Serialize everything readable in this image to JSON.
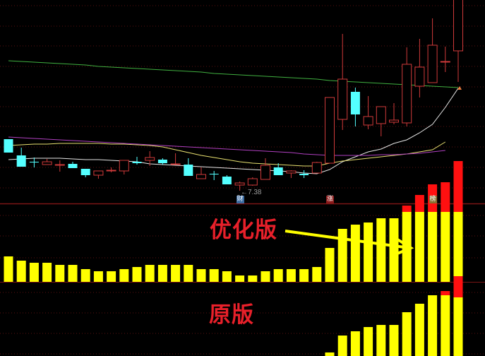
{
  "chart_data": [
    {
      "type": "candlestick",
      "panel": "main",
      "price_range": [
        7.2,
        10.08
      ],
      "grid": true,
      "colors": {
        "up": "#d03a3a",
        "down": "#54ffff",
        "background": "#000000",
        "grid": "#5a1010"
      },
      "candles": [
        {
          "o": 8.11,
          "h": 8.11,
          "l": 7.92,
          "c": 7.92
        },
        {
          "o": 7.88,
          "h": 7.99,
          "l": 7.72,
          "c": 7.72
        },
        {
          "o": 7.79,
          "h": 7.85,
          "l": 7.71,
          "c": 7.78
        },
        {
          "o": 7.75,
          "h": 7.83,
          "l": 7.75,
          "c": 7.79
        },
        {
          "o": 7.74,
          "h": 7.81,
          "l": 7.65,
          "c": 7.75
        },
        {
          "o": 7.76,
          "h": 7.79,
          "l": 7.7,
          "c": 7.7
        },
        {
          "o": 7.69,
          "h": 7.69,
          "l": 7.57,
          "c": 7.6
        },
        {
          "o": 7.6,
          "h": 7.66,
          "l": 7.55,
          "c": 7.66
        },
        {
          "o": 7.66,
          "h": 7.71,
          "l": 7.64,
          "c": 7.67
        },
        {
          "o": 7.66,
          "h": 7.81,
          "l": 7.61,
          "c": 7.81
        },
        {
          "o": 7.79,
          "h": 7.86,
          "l": 7.75,
          "c": 7.77
        },
        {
          "o": 7.81,
          "h": 7.94,
          "l": 7.73,
          "c": 7.85
        },
        {
          "o": 7.82,
          "h": 7.84,
          "l": 7.75,
          "c": 7.77
        },
        {
          "o": 7.75,
          "h": 7.91,
          "l": 7.75,
          "c": 7.76
        },
        {
          "o": 7.75,
          "h": 7.84,
          "l": 7.59,
          "c": 7.59
        },
        {
          "o": 7.55,
          "h": 7.71,
          "l": 7.55,
          "c": 7.61
        },
        {
          "o": 7.62,
          "h": 7.66,
          "l": 7.53,
          "c": 7.61
        },
        {
          "o": 7.58,
          "h": 7.6,
          "l": 7.47,
          "c": 7.47
        },
        {
          "o": 7.46,
          "h": 7.51,
          "l": 7.38,
          "c": 7.49
        },
        {
          "o": 7.46,
          "h": 7.57,
          "l": 7.45,
          "c": 7.55
        },
        {
          "o": 7.54,
          "h": 7.84,
          "l": 7.54,
          "c": 7.74
        },
        {
          "o": 7.71,
          "h": 7.77,
          "l": 7.6,
          "c": 7.6
        },
        {
          "o": 7.63,
          "h": 7.67,
          "l": 7.56,
          "c": 7.66
        },
        {
          "o": 7.62,
          "h": 7.67,
          "l": 7.56,
          "c": 7.6
        },
        {
          "o": 7.63,
          "h": 7.79,
          "l": 7.63,
          "c": 7.78
        },
        {
          "o": 7.77,
          "h": 8.7,
          "l": 7.77,
          "c": 8.7
        },
        {
          "o": 8.39,
          "h": 9.6,
          "l": 8.24,
          "c": 8.96
        },
        {
          "o": 8.78,
          "h": 8.84,
          "l": 8.29,
          "c": 8.46
        },
        {
          "o": 8.31,
          "h": 8.72,
          "l": 8.25,
          "c": 8.43
        },
        {
          "o": 8.33,
          "h": 8.57,
          "l": 8.15,
          "c": 8.57
        },
        {
          "o": 8.35,
          "h": 8.62,
          "l": 8.32,
          "c": 8.38
        },
        {
          "o": 8.34,
          "h": 9.41,
          "l": 8.29,
          "c": 9.17
        },
        {
          "o": 8.86,
          "h": 9.53,
          "l": 8.7,
          "c": 9.13
        },
        {
          "o": 8.91,
          "h": 9.82,
          "l": 8.91,
          "c": 9.44
        },
        {
          "o": 9.2,
          "h": 9.42,
          "l": 9.06,
          "c": 9.21
        },
        {
          "o": 9.36,
          "h": 10.4,
          "l": 8.92,
          "c": 10.3
        }
      ],
      "moving_averages": [
        {
          "color": "#e6e6e6",
          "values": [
            7.82,
            7.83,
            7.84,
            7.84,
            7.84,
            7.83,
            7.82,
            7.82,
            7.81,
            7.8,
            7.79,
            7.76,
            7.75,
            7.74,
            7.73,
            7.72,
            7.71,
            7.7,
            7.69,
            7.68,
            7.67,
            7.66,
            7.65,
            7.63,
            7.62,
            7.68,
            7.79,
            7.86,
            7.93,
            7.97,
            8.05,
            8.1,
            8.2,
            8.32,
            8.56,
            8.83
          ]
        },
        {
          "color": "#e8e070",
          "values": [
            8.02,
            8.03,
            8.04,
            8.04,
            8.05,
            8.05,
            8.05,
            8.05,
            8.04,
            8.04,
            8.03,
            8.02,
            8.0,
            7.96,
            7.92,
            7.88,
            7.85,
            7.82,
            7.79,
            7.77,
            7.76,
            7.75,
            7.74,
            7.73,
            7.73,
            7.77,
            7.8,
            7.82,
            7.84,
            7.86,
            7.88,
            7.9,
            7.93,
            7.96,
            8.07
          ]
        },
        {
          "color": "#b040c0",
          "values": [
            8.14,
            8.13,
            8.12,
            8.11,
            8.1,
            8.09,
            8.08,
            8.07,
            8.06,
            8.05,
            8.04,
            8.03,
            8.02,
            8.01,
            8.0,
            7.99,
            7.98,
            7.97,
            7.96,
            7.95,
            7.94,
            7.93,
            7.92,
            7.9,
            7.89,
            7.88,
            7.88,
            7.88,
            7.88,
            7.89,
            7.89,
            7.9,
            7.91,
            7.93,
            7.95
          ]
        },
        {
          "color": "#40b040",
          "values": [
            9.22,
            9.21,
            9.2,
            9.19,
            9.18,
            9.17,
            9.16,
            9.14,
            9.13,
            9.12,
            9.11,
            9.1,
            9.09,
            9.08,
            9.07,
            9.06,
            9.04,
            9.03,
            9.02,
            9.01,
            9.0,
            8.99,
            8.98,
            8.97,
            8.96,
            8.94,
            8.93,
            8.92,
            8.91,
            8.9,
            8.89,
            8.88,
            8.87,
            8.86,
            8.85,
            8.84
          ]
        }
      ],
      "annotations": {
        "low_label": "←7.38",
        "markers": [
          {
            "index": 18,
            "text": "财",
            "color": "#3a6aa0"
          },
          {
            "index": 25,
            "text": "涨",
            "color": "#8a1a1a"
          },
          {
            "index": 33,
            "text": "榜",
            "color": "#8a7030"
          }
        ]
      }
    },
    {
      "type": "bar",
      "panel": "indicator-1",
      "title": "优化版",
      "stacked": true,
      "series": [
        {
          "color": "#ffff00",
          "values": [
            12,
            10,
            9,
            9,
            8,
            8,
            6,
            5,
            5,
            6,
            7,
            8,
            8,
            8,
            8,
            6,
            6,
            5,
            3,
            3,
            5,
            6,
            6,
            6,
            7,
            16,
            25,
            27,
            28,
            30,
            30,
            33,
            33,
            33,
            33,
            33
          ]
        },
        {
          "color": "#ff1010",
          "values": [
            0,
            0,
            0,
            0,
            0,
            0,
            0,
            0,
            0,
            0,
            0,
            0,
            0,
            0,
            0,
            0,
            0,
            0,
            0,
            0,
            0,
            0,
            0,
            0,
            0,
            0,
            0,
            0,
            0,
            0,
            0,
            3,
            8,
            13,
            14,
            24
          ]
        }
      ]
    },
    {
      "type": "bar",
      "panel": "indicator-2",
      "title": "原版",
      "stacked": true,
      "series": [
        {
          "color": "#ffff00",
          "values": [
            0,
            0,
            0,
            0,
            0,
            0,
            0,
            0,
            0,
            0,
            0,
            0,
            0,
            0,
            0,
            0,
            0,
            0,
            0,
            0,
            0,
            0,
            0,
            0,
            0,
            2,
            10,
            12,
            14,
            15,
            15,
            21,
            25,
            29,
            29,
            28
          ]
        },
        {
          "color": "#ff1010",
          "values": [
            0,
            0,
            0,
            0,
            0,
            0,
            0,
            0,
            0,
            0,
            0,
            0,
            0,
            0,
            0,
            0,
            0,
            0,
            0,
            0,
            0,
            0,
            0,
            0,
            0,
            0,
            0,
            0,
            0,
            0,
            0,
            0,
            0,
            0,
            2,
            10
          ]
        }
      ]
    }
  ],
  "labels": {
    "optimized": "优化版",
    "original": "原版"
  },
  "arrow_color": "#ffff00"
}
